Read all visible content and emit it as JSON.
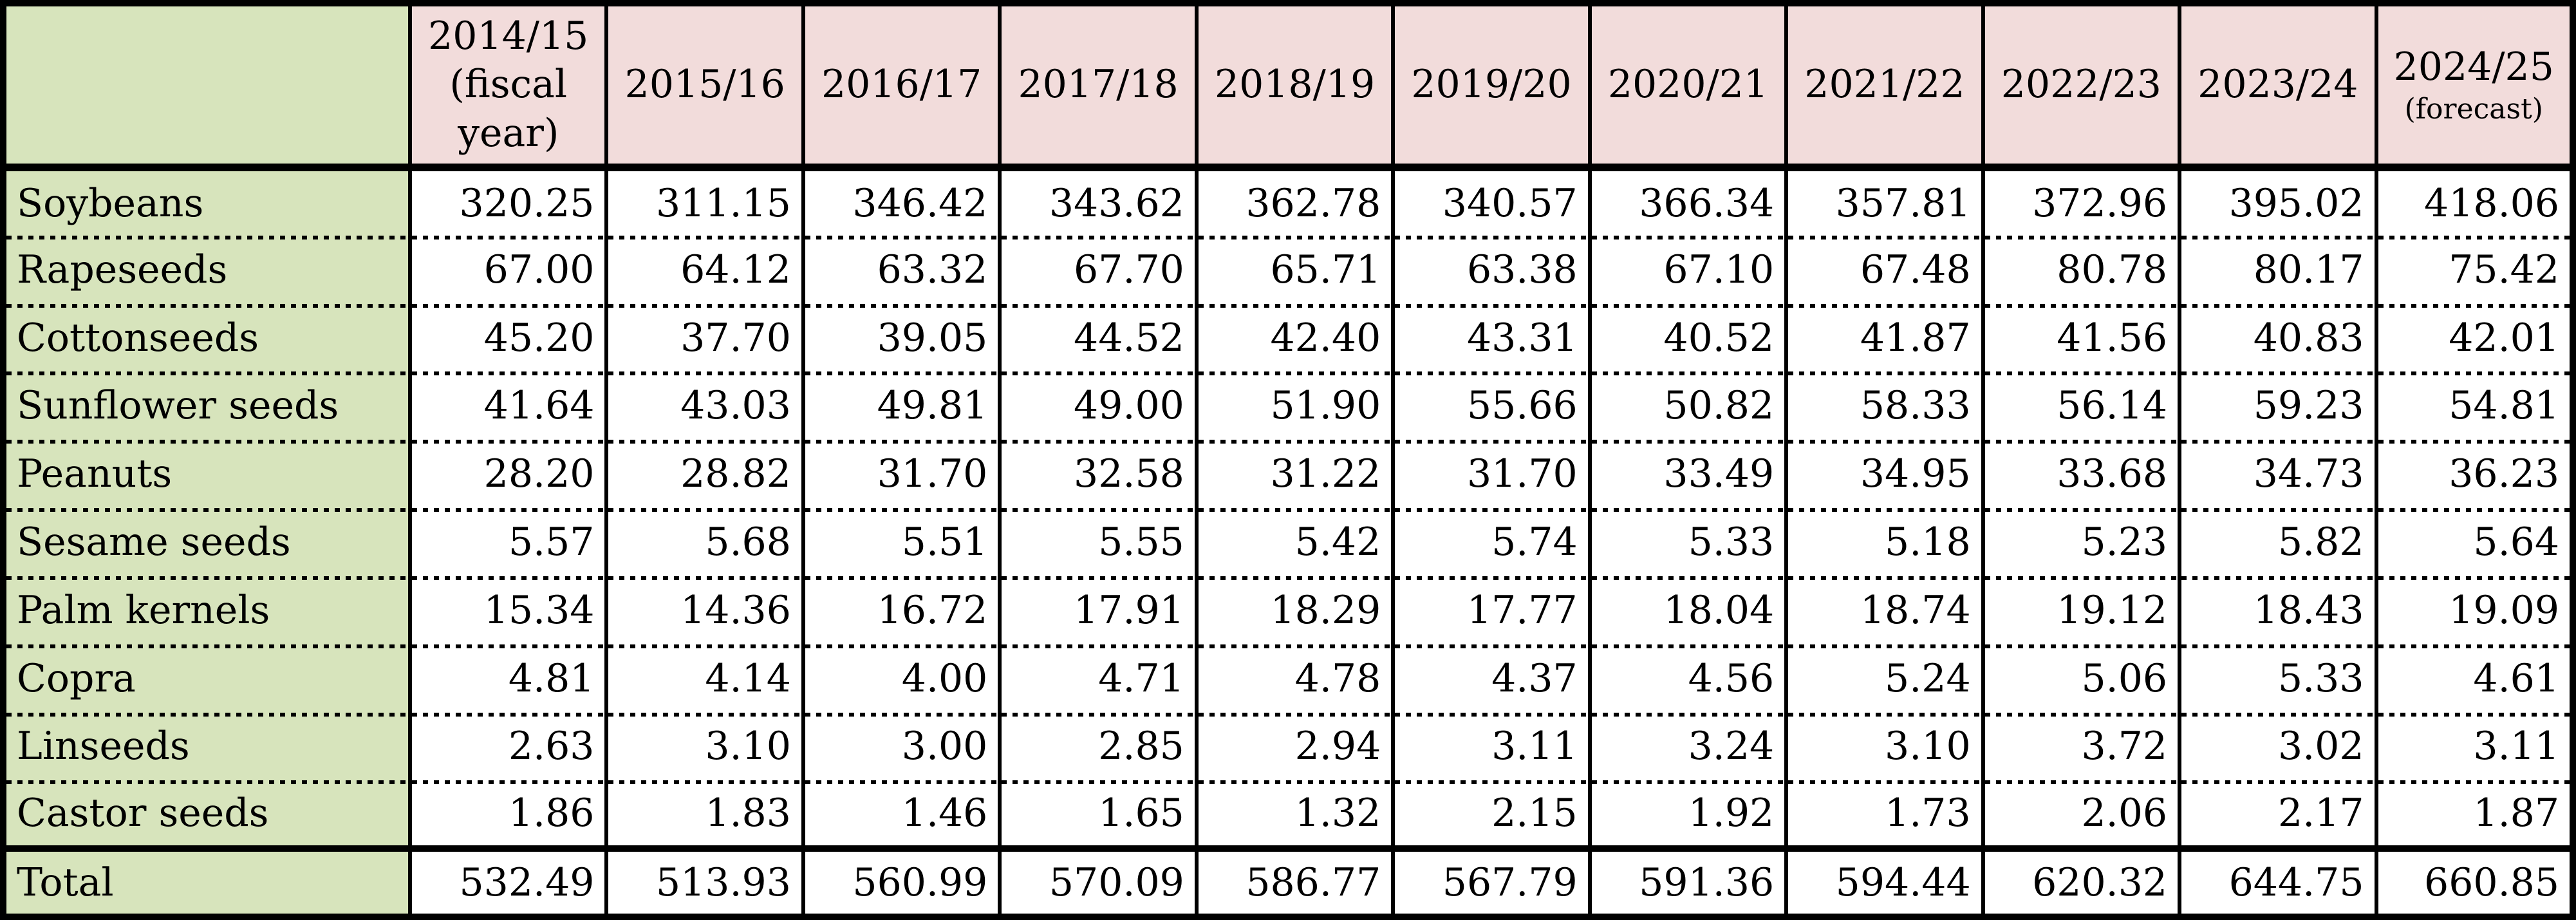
{
  "table": {
    "colors": {
      "header_bg": "#f2dcdb",
      "label_bg": "#d7e4bc",
      "cell_bg": "#ffffff",
      "border": "#000000"
    },
    "columns": [
      {
        "label": "2014/15",
        "sub": "(fiscal year)",
        "sub_small": false
      },
      {
        "label": "2015/16"
      },
      {
        "label": "2016/17"
      },
      {
        "label": "2017/18"
      },
      {
        "label": "2018/19"
      },
      {
        "label": "2019/20"
      },
      {
        "label": "2020/21"
      },
      {
        "label": "2021/22"
      },
      {
        "label": "2022/23"
      },
      {
        "label": "2023/24"
      },
      {
        "label": "2024/25",
        "sub": "(forecast)",
        "sub_small": true
      }
    ],
    "rows": [
      {
        "label": "Soybeans",
        "values": [
          "320.25",
          "311.15",
          "346.42",
          "343.62",
          "362.78",
          "340.57",
          "366.34",
          "357.81",
          "372.96",
          "395.02",
          "418.06"
        ]
      },
      {
        "label": "Rapeseeds",
        "values": [
          "67.00",
          "64.12",
          "63.32",
          "67.70",
          "65.71",
          "63.38",
          "67.10",
          "67.48",
          "80.78",
          "80.17",
          "75.42"
        ]
      },
      {
        "label": "Cottonseeds",
        "values": [
          "45.20",
          "37.70",
          "39.05",
          "44.52",
          "42.40",
          "43.31",
          "40.52",
          "41.87",
          "41.56",
          "40.83",
          "42.01"
        ]
      },
      {
        "label": "Sunflower seeds",
        "values": [
          "41.64",
          "43.03",
          "49.81",
          "49.00",
          "51.90",
          "55.66",
          "50.82",
          "58.33",
          "56.14",
          "59.23",
          "54.81"
        ]
      },
      {
        "label": "Peanuts",
        "values": [
          "28.20",
          "28.82",
          "31.70",
          "32.58",
          "31.22",
          "31.70",
          "33.49",
          "34.95",
          "33.68",
          "34.73",
          "36.23"
        ]
      },
      {
        "label": "Sesame seeds",
        "values": [
          "5.57",
          "5.68",
          "5.51",
          "5.55",
          "5.42",
          "5.74",
          "5.33",
          "5.18",
          "5.23",
          "5.82",
          "5.64"
        ]
      },
      {
        "label": "Palm kernels",
        "values": [
          "15.34",
          "14.36",
          "16.72",
          "17.91",
          "18.29",
          "17.77",
          "18.04",
          "18.74",
          "19.12",
          "18.43",
          "19.09"
        ]
      },
      {
        "label": "Copra",
        "values": [
          "4.81",
          "4.14",
          "4.00",
          "4.71",
          "4.78",
          "4.37",
          "4.56",
          "5.24",
          "5.06",
          "5.33",
          "4.61"
        ]
      },
      {
        "label": "Linseeds",
        "values": [
          "2.63",
          "3.10",
          "3.00",
          "2.85",
          "2.94",
          "3.11",
          "3.24",
          "3.10",
          "3.72",
          "3.02",
          "3.11"
        ]
      },
      {
        "label": "Castor seeds",
        "values": [
          "1.86",
          "1.83",
          "1.46",
          "1.65",
          "1.32",
          "2.15",
          "1.92",
          "1.73",
          "2.06",
          "2.17",
          "1.87"
        ]
      },
      {
        "label": "Total",
        "values": [
          "532.49",
          "513.93",
          "560.99",
          "570.09",
          "586.77",
          "567.79",
          "591.36",
          "594.44",
          "620.32",
          "644.75",
          "660.85"
        ],
        "is_total": true
      }
    ]
  },
  "chart_data": {
    "type": "table",
    "columns": [
      "2014/15 (fiscal year)",
      "2015/16",
      "2016/17",
      "2017/18",
      "2018/19",
      "2019/20",
      "2020/21",
      "2021/22",
      "2022/23",
      "2023/24",
      "2024/25 (forecast)"
    ],
    "rows": [
      {
        "label": "Soybeans",
        "values": [
          320.25,
          311.15,
          346.42,
          343.62,
          362.78,
          340.57,
          366.34,
          357.81,
          372.96,
          395.02,
          418.06
        ]
      },
      {
        "label": "Rapeseeds",
        "values": [
          67.0,
          64.12,
          63.32,
          67.7,
          65.71,
          63.38,
          67.1,
          67.48,
          80.78,
          80.17,
          75.42
        ]
      },
      {
        "label": "Cottonseeds",
        "values": [
          45.2,
          37.7,
          39.05,
          44.52,
          42.4,
          43.31,
          40.52,
          41.87,
          41.56,
          40.83,
          42.01
        ]
      },
      {
        "label": "Sunflower seeds",
        "values": [
          41.64,
          43.03,
          49.81,
          49.0,
          51.9,
          55.66,
          50.82,
          58.33,
          56.14,
          59.23,
          54.81
        ]
      },
      {
        "label": "Peanuts",
        "values": [
          28.2,
          28.82,
          31.7,
          32.58,
          31.22,
          31.7,
          33.49,
          34.95,
          33.68,
          34.73,
          36.23
        ]
      },
      {
        "label": "Sesame seeds",
        "values": [
          5.57,
          5.68,
          5.51,
          5.55,
          5.42,
          5.74,
          5.33,
          5.18,
          5.23,
          5.82,
          5.64
        ]
      },
      {
        "label": "Palm kernels",
        "values": [
          15.34,
          14.36,
          16.72,
          17.91,
          18.29,
          17.77,
          18.04,
          18.74,
          19.12,
          18.43,
          19.09
        ]
      },
      {
        "label": "Copra",
        "values": [
          4.81,
          4.14,
          4.0,
          4.71,
          4.78,
          4.37,
          4.56,
          5.24,
          5.06,
          5.33,
          4.61
        ]
      },
      {
        "label": "Linseeds",
        "values": [
          2.63,
          3.1,
          3.0,
          2.85,
          2.94,
          3.11,
          3.24,
          3.1,
          3.72,
          3.02,
          3.11
        ]
      },
      {
        "label": "Castor seeds",
        "values": [
          1.86,
          1.83,
          1.46,
          1.65,
          1.32,
          2.15,
          1.92,
          1.73,
          2.06,
          2.17,
          1.87
        ]
      },
      {
        "label": "Total",
        "values": [
          532.49,
          513.93,
          560.99,
          570.09,
          586.77,
          567.79,
          591.36,
          594.44,
          620.32,
          644.75,
          660.85
        ]
      }
    ]
  }
}
